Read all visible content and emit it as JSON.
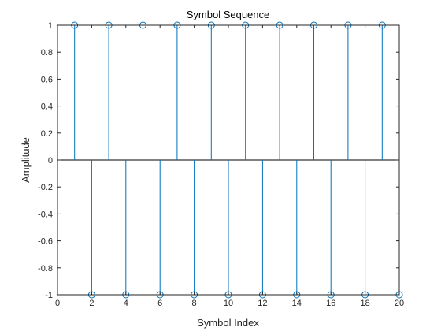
{
  "chart_data": {
    "type": "stem",
    "title": "Symbol Sequence",
    "xlabel": "Symbol Index",
    "ylabel": "Amplitude",
    "xlim": [
      0,
      20
    ],
    "ylim": [
      -1,
      1
    ],
    "x_ticks": [
      0,
      2,
      4,
      6,
      8,
      10,
      12,
      14,
      16,
      18,
      20
    ],
    "y_ticks": [
      -1,
      -0.8,
      -0.6,
      -0.4,
      -0.2,
      0,
      0.2,
      0.4,
      0.6,
      0.8,
      1
    ],
    "x_tick_labels": [
      "0",
      "2",
      "4",
      "6",
      "8",
      "10",
      "12",
      "14",
      "16",
      "18",
      "20"
    ],
    "y_tick_labels": [
      "-1",
      "-0.8",
      "-0.6",
      "-0.4",
      "-0.2",
      "0",
      "0.2",
      "0.4",
      "0.6",
      "0.8",
      "1"
    ],
    "grid": false,
    "baseline": 0,
    "marker": "circle-open",
    "series": [
      {
        "x": [
          1,
          2,
          3,
          4,
          5,
          6,
          7,
          8,
          9,
          10,
          11,
          12,
          13,
          14,
          15,
          16,
          17,
          18,
          19,
          20
        ],
        "y": [
          1,
          -1,
          1,
          -1,
          1,
          -1,
          1,
          -1,
          1,
          -1,
          1,
          -1,
          1,
          -1,
          1,
          -1,
          1,
          -1,
          1,
          -1
        ],
        "color": "#0072BD"
      }
    ]
  }
}
